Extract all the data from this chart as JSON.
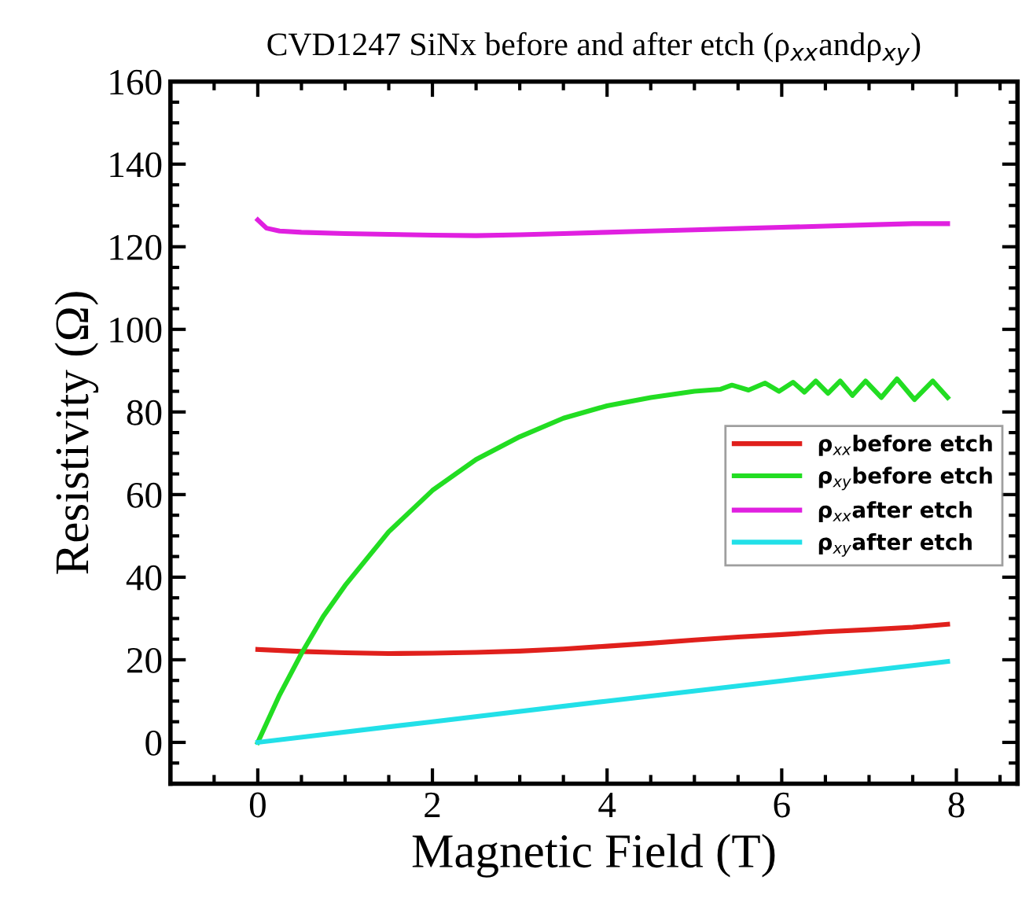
{
  "chart_data": {
    "type": "line",
    "title": "CVD1247 SiNx before and after etch (ρ$_{xx}$andρ$_{xy}$)",
    "xlabel": "Magnetic Field (T)",
    "ylabel": "Resistivity (Ω)",
    "xlim": [
      -1,
      8.7
    ],
    "xticks": [
      0,
      2,
      4,
      6,
      8
    ],
    "ylim": [
      -10,
      160
    ],
    "yticks": [
      0,
      20,
      40,
      60,
      80,
      100,
      120,
      140,
      160
    ],
    "grid": false,
    "legend": "right",
    "marker": "none",
    "line_style": "solid",
    "series": [
      {
        "name": "ρ$_{xx}$before etch",
        "color": "#e0201c",
        "x": [
          0,
          0.5,
          1,
          1.5,
          2,
          2.5,
          3,
          3.5,
          4,
          4.5,
          5,
          5.5,
          6,
          6.5,
          7,
          7.5,
          7.9
        ],
        "values": [
          22.5,
          22,
          21.7,
          21.5,
          21.6,
          21.8,
          22.1,
          22.6,
          23.3,
          24,
          24.8,
          25.5,
          26.1,
          26.8,
          27.3,
          27.9,
          28.6
        ]
      },
      {
        "name": "ρ$_{xy}$before etch",
        "color": "#22dd22",
        "x": [
          0,
          0.25,
          0.5,
          0.75,
          1,
          1.5,
          2,
          2.5,
          3,
          3.5,
          4,
          4.5,
          5,
          5.3,
          5.43,
          5.62,
          5.81,
          5.97,
          6.13,
          6.26,
          6.39,
          6.53,
          6.67,
          6.81,
          6.96,
          7.14,
          7.32,
          7.52,
          7.73,
          7.9
        ],
        "values": [
          0,
          11.5,
          21.5,
          30.5,
          38,
          51,
          61,
          68.5,
          74,
          78.5,
          81.5,
          83.5,
          85,
          85.5,
          86.5,
          85.3,
          87,
          85,
          87.2,
          84.8,
          87.5,
          84.5,
          87.5,
          84,
          87.5,
          83.5,
          88,
          83,
          87.5,
          83.5
        ]
      },
      {
        "name": "ρ$_{xx}$after etch",
        "color": "#e020e0",
        "x": [
          0,
          0.1,
          0.25,
          0.5,
          1,
          1.5,
          2,
          2.5,
          3,
          3.5,
          4,
          4.5,
          5,
          5.5,
          6,
          6.5,
          7,
          7.5,
          7.9
        ],
        "values": [
          126.5,
          124.5,
          123.8,
          123.5,
          123.2,
          123,
          122.8,
          122.7,
          122.9,
          123.2,
          123.5,
          123.8,
          124.1,
          124.4,
          124.7,
          125,
          125.3,
          125.6,
          125.6
        ]
      },
      {
        "name": "ρ$_{xy}$after etch",
        "color": "#22e0e8",
        "x": [
          0,
          2,
          4,
          6,
          7.9
        ],
        "values": [
          0,
          5,
          10,
          14.9,
          19.6
        ]
      }
    ]
  }
}
